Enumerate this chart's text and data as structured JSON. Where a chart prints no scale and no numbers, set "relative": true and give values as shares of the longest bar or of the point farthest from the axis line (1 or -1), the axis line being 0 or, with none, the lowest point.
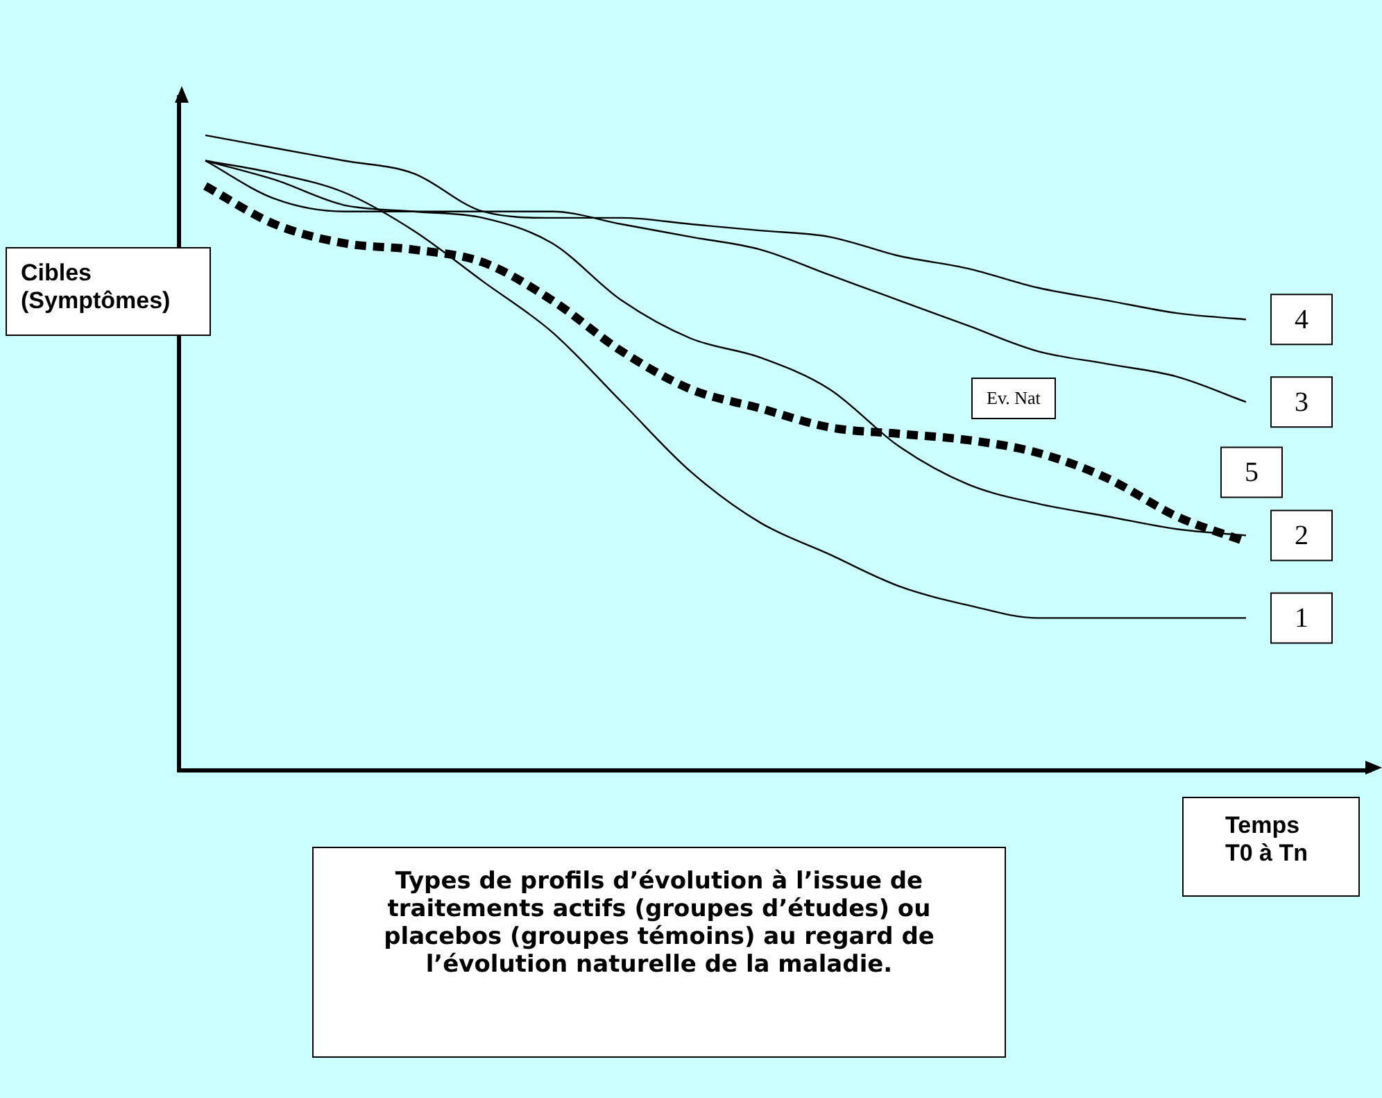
{
  "chart_data": {
    "type": "line",
    "relative": true,
    "marker": "none",
    "line_style": "solid",
    "title": "Types de profils d’évolution à l’issue de traitements actifs (groupes d’études) ou placebos (groupes témoins) au regard de l’évolution naturelle de la maladie.",
    "xlabel": "Temps T0 à Tn",
    "ylabel": "Cibles (Symptômes)",
    "annotations": [
      "Ev. Nat"
    ],
    "categories": [
      null,
      null,
      null,
      null,
      null,
      null,
      null,
      null,
      null,
      null,
      null,
      null,
      null,
      null,
      null,
      null
    ],
    "series": [
      {
        "name": "1",
        "color": "#000000",
        "values": [
          0.96,
          0.94,
          0.91,
          0.85,
          0.77,
          0.69,
          0.58,
          0.47,
          0.39,
          0.34,
          0.29,
          0.26,
          0.24,
          0.24,
          0.24,
          0.24
        ]
      },
      {
        "name": "2",
        "color": "#000000",
        "values": [
          0.96,
          0.93,
          0.89,
          0.88,
          0.87,
          0.83,
          0.74,
          0.68,
          0.65,
          0.6,
          0.51,
          0.45,
          0.42,
          0.4,
          0.38,
          0.37
        ]
      },
      {
        "name": "3",
        "color": "#000000",
        "values": [
          0.96,
          0.9,
          0.88,
          0.88,
          0.88,
          0.88,
          0.86,
          0.84,
          0.82,
          0.78,
          0.74,
          0.7,
          0.66,
          0.64,
          0.62,
          0.58
        ]
      },
      {
        "name": "4",
        "color": "#000000",
        "values": [
          1.0,
          0.98,
          0.96,
          0.94,
          0.88,
          0.87,
          0.87,
          0.86,
          0.85,
          0.84,
          0.81,
          0.79,
          0.76,
          0.74,
          0.72,
          0.71
        ]
      },
      {
        "name": "5",
        "color": "#000000",
        "line_style": "dashed",
        "values": [
          0.92,
          0.86,
          0.83,
          0.82,
          0.8,
          0.74,
          0.66,
          0.6,
          0.57,
          0.54,
          0.53,
          0.52,
          0.5,
          0.46,
          0.4,
          0.36
        ]
      }
    ]
  }
}
